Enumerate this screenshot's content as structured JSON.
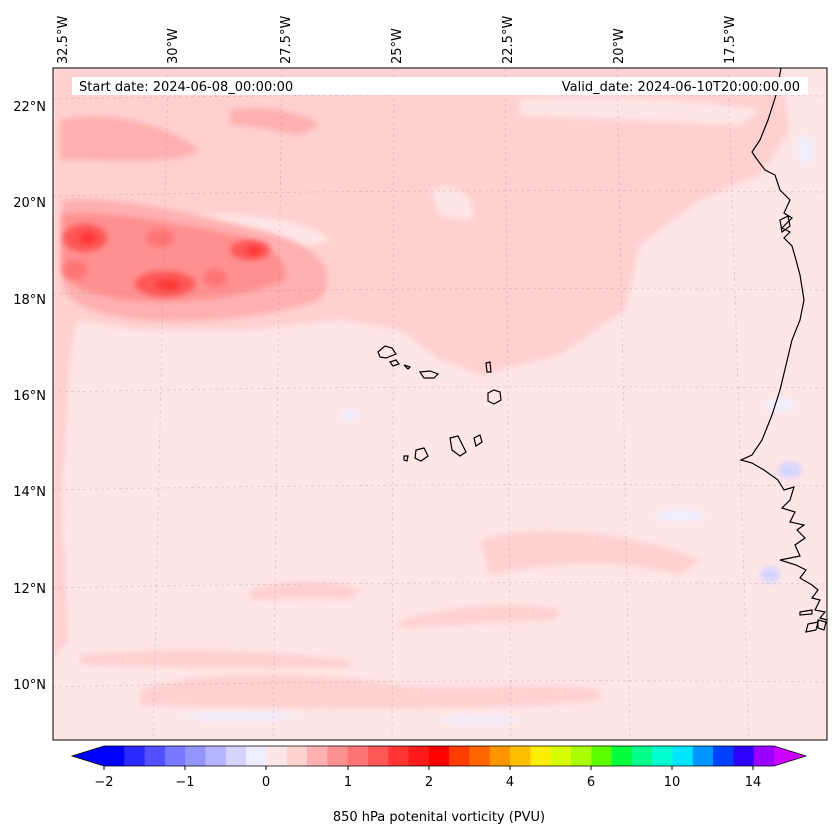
{
  "chart_data": {
    "type": "heatmap",
    "title": "",
    "header": {
      "start_date": "Start date: 2024-06-08_00:00:00",
      "valid_date": "Valid_date: 2024-06-10T20:00:00.00"
    },
    "x_ticks": [
      "32.5°W",
      "30°W",
      "27.5°W",
      "25°W",
      "22.5°W",
      "20°W",
      "17.5°W"
    ],
    "x_tick_values": [
      -32.5,
      -30,
      -27.5,
      -25,
      -22.5,
      -20,
      -17.5
    ],
    "y_ticks": [
      "22°N",
      "20°N",
      "18°N",
      "16°N",
      "14°N",
      "12°N",
      "10°N"
    ],
    "y_tick_values": [
      22,
      20,
      18,
      16,
      14,
      12,
      10
    ],
    "lon_range": [
      -32.6,
      -15.4
    ],
    "lat_range": [
      8.9,
      22.8
    ],
    "colorbar": {
      "label": "850 hPa potenital vorticity (PVU)",
      "tick_labels": [
        "−2",
        "−1",
        "0",
        "1",
        "2",
        "4",
        "6",
        "10",
        "14"
      ],
      "extend": "both",
      "colors": [
        "#0000ff",
        "#2a2aff",
        "#5050ff",
        "#7878ff",
        "#9494ff",
        "#b4b4ff",
        "#d4d4ff",
        "#eeeeff",
        "#ffe6e6",
        "#ffd0d0",
        "#ffb0b0",
        "#ff9090",
        "#ff7474",
        "#ff5656",
        "#ff3434",
        "#ff1a1a",
        "#ff0000",
        "#ff3c00",
        "#ff6600",
        "#ff9600",
        "#ffbe00",
        "#ffee00",
        "#d8ff00",
        "#a8ff00",
        "#5aff00",
        "#00ff3a",
        "#00ff88",
        "#00ffd0",
        "#00e6ff",
        "#0096ff",
        "#0040ff",
        "#3000ff",
        "#9a00ff"
      ],
      "under_color": "#0000ff",
      "over_color": "#cc00ff"
    },
    "field_features": [
      {
        "region": "background",
        "pv_range": [
          0,
          0.5
        ]
      },
      {
        "region": "northern band (16–22°N)",
        "pv_range": [
          0.5,
          1
        ]
      },
      {
        "region": "maxima near 19°N, 31–27°W",
        "pv_range": [
          1.5,
          2
        ]
      },
      {
        "region": "weak negatives near African coast",
        "pv_range": [
          -0.5,
          0
        ]
      }
    ]
  }
}
